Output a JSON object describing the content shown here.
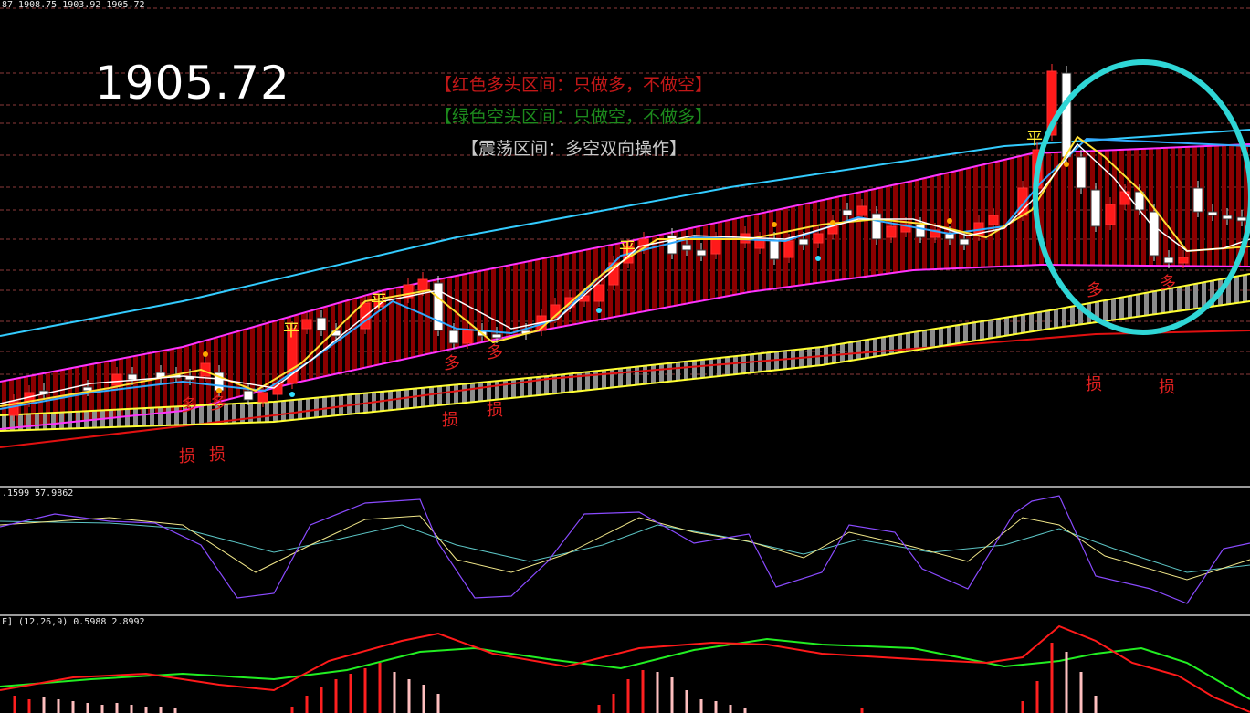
{
  "main": {
    "header": "87 1908.75 1903.92 1905.72",
    "big_price": "1905.72",
    "legend_red": "【红色多头区间：只做多，不做空】",
    "legend_green": "【绿色空头区间：只做空，不做多】",
    "legend_gray": "【震荡区间：多空双向操作】",
    "signal_ping": "平",
    "signal_duo": "多",
    "signal_sun": "损"
  },
  "osc": {
    "header": ".1599 57.9862"
  },
  "macd": {
    "header": "F] (12,26,9) 0.5988 2.8992"
  },
  "colors": {
    "bull_body": "#ff1a1a",
    "bear_body": "#ffffff",
    "band_line": "#ff33ff",
    "band_fill": "#8b0000",
    "upper_line": "#33ccff",
    "highlight_circle": "#2fd6d6",
    "legend_red": "#c21818",
    "legend_green": "#1d8a1d",
    "legend_gray": "#c8c8c8"
  }
}
